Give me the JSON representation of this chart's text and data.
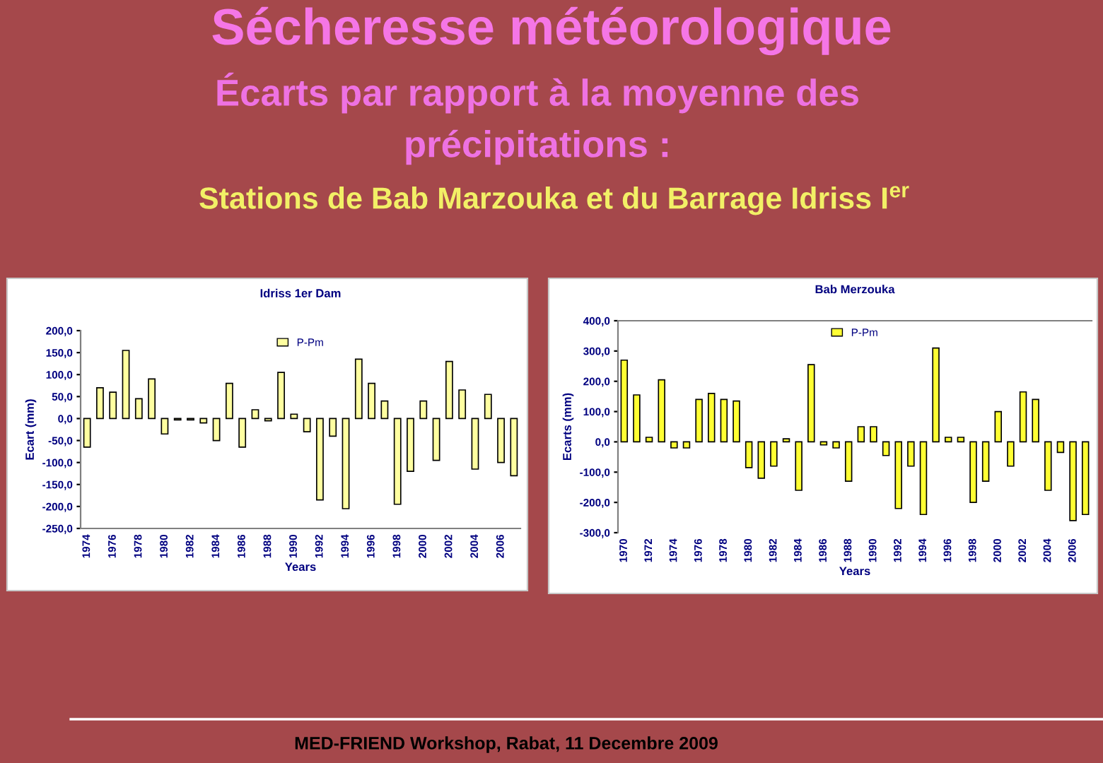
{
  "chart_data": [
    {
      "type": "other",
      "title": "Sécheresse météorologique",
      "subtitle": "Écarts par rapport à la moyenne des\nprécipitations :",
      "annotations": [
        "Stations de Bab Marzouka et du Barrage Idriss I$^{er}$",
        "MED-FRIEND Workshop, Rabat, 11 Decembre 2009"
      ]
    },
    {
      "type": "bar",
      "title": "Idriss 1er Dam",
      "xlabel": "Years",
      "ylabel": "Ecart (mm)",
      "legend": "top",
      "categories": [
        "1974",
        null,
        "1976",
        null,
        "1978",
        null,
        "1980",
        null,
        "1982",
        null,
        "1984",
        null,
        "1986",
        null,
        "1988",
        null,
        "1990",
        null,
        "1992",
        null,
        "1994",
        null,
        "1996",
        null,
        "1998",
        null,
        "2000",
        null,
        "2002",
        null,
        "2004",
        null,
        "2006",
        null
      ],
      "series": [
        {
          "name": "P-Pm",
          "color": "#ffffa0",
          "values": [
            -65,
            70,
            60,
            155,
            45,
            90,
            -35,
            -3,
            -3,
            -10,
            -50,
            80,
            -65,
            20,
            -5,
            105,
            10,
            -30,
            -185,
            -40,
            -205,
            135,
            80,
            40,
            -195,
            -120,
            40,
            -95,
            130,
            65,
            -115,
            55,
            -100,
            -130
          ]
        }
      ],
      "ylim": [
        -250,
        200
      ],
      "yticks": [
        {
          "value": -250,
          "label": "-250,0"
        },
        {
          "value": -200,
          "label": "-200,0"
        },
        {
          "value": -150,
          "label": "-150,0"
        },
        {
          "value": -100,
          "label": "-100,0"
        },
        {
          "value": -50,
          "label": "-50,0"
        },
        {
          "value": 0,
          "label": "0,0"
        },
        {
          "value": 50,
          "label": "50,0"
        },
        {
          "value": 100,
          "label": "100,0"
        },
        {
          "value": 150,
          "label": "150,0"
        },
        {
          "value": 200,
          "label": "200,0"
        }
      ]
    },
    {
      "type": "bar",
      "title": "Bab Merzouka",
      "xlabel": "Years",
      "ylabel": "Ecarts (mm)",
      "legend": "top",
      "categories": [
        "1970",
        null,
        "1972",
        null,
        "1974",
        null,
        "1976",
        null,
        "1978",
        null,
        "1980",
        null,
        "1982",
        null,
        "1984",
        null,
        "1986",
        null,
        "1988",
        null,
        "1990",
        null,
        "1992",
        null,
        "1994",
        null,
        "1996",
        null,
        "1998",
        null,
        "2000",
        null,
        "2002",
        null,
        "2004",
        null,
        "2006",
        null
      ],
      "series": [
        {
          "name": "P-Pm",
          "color": "#ffff33",
          "values": [
            270,
            155,
            15,
            205,
            -20,
            -20,
            140,
            160,
            140,
            135,
            -85,
            -120,
            -80,
            10,
            -160,
            255,
            -10,
            -20,
            -130,
            50,
            50,
            -45,
            -220,
            -80,
            -240,
            310,
            15,
            15,
            -200,
            -130,
            100,
            -80,
            165,
            140,
            -160,
            -35,
            -260,
            -240
          ]
        }
      ],
      "ylim": [
        -300,
        400
      ],
      "yticks": [
        {
          "value": -300,
          "label": "-300,0"
        },
        {
          "value": -200,
          "label": "-200,0"
        },
        {
          "value": -100,
          "label": "-100,0"
        },
        {
          "value": 0,
          "label": "0,0"
        },
        {
          "value": 100,
          "label": "100,0"
        },
        {
          "value": 200,
          "label": "200,0"
        },
        {
          "value": 300,
          "label": "300,0"
        },
        {
          "value": 400,
          "label": "400,0"
        }
      ]
    }
  ]
}
